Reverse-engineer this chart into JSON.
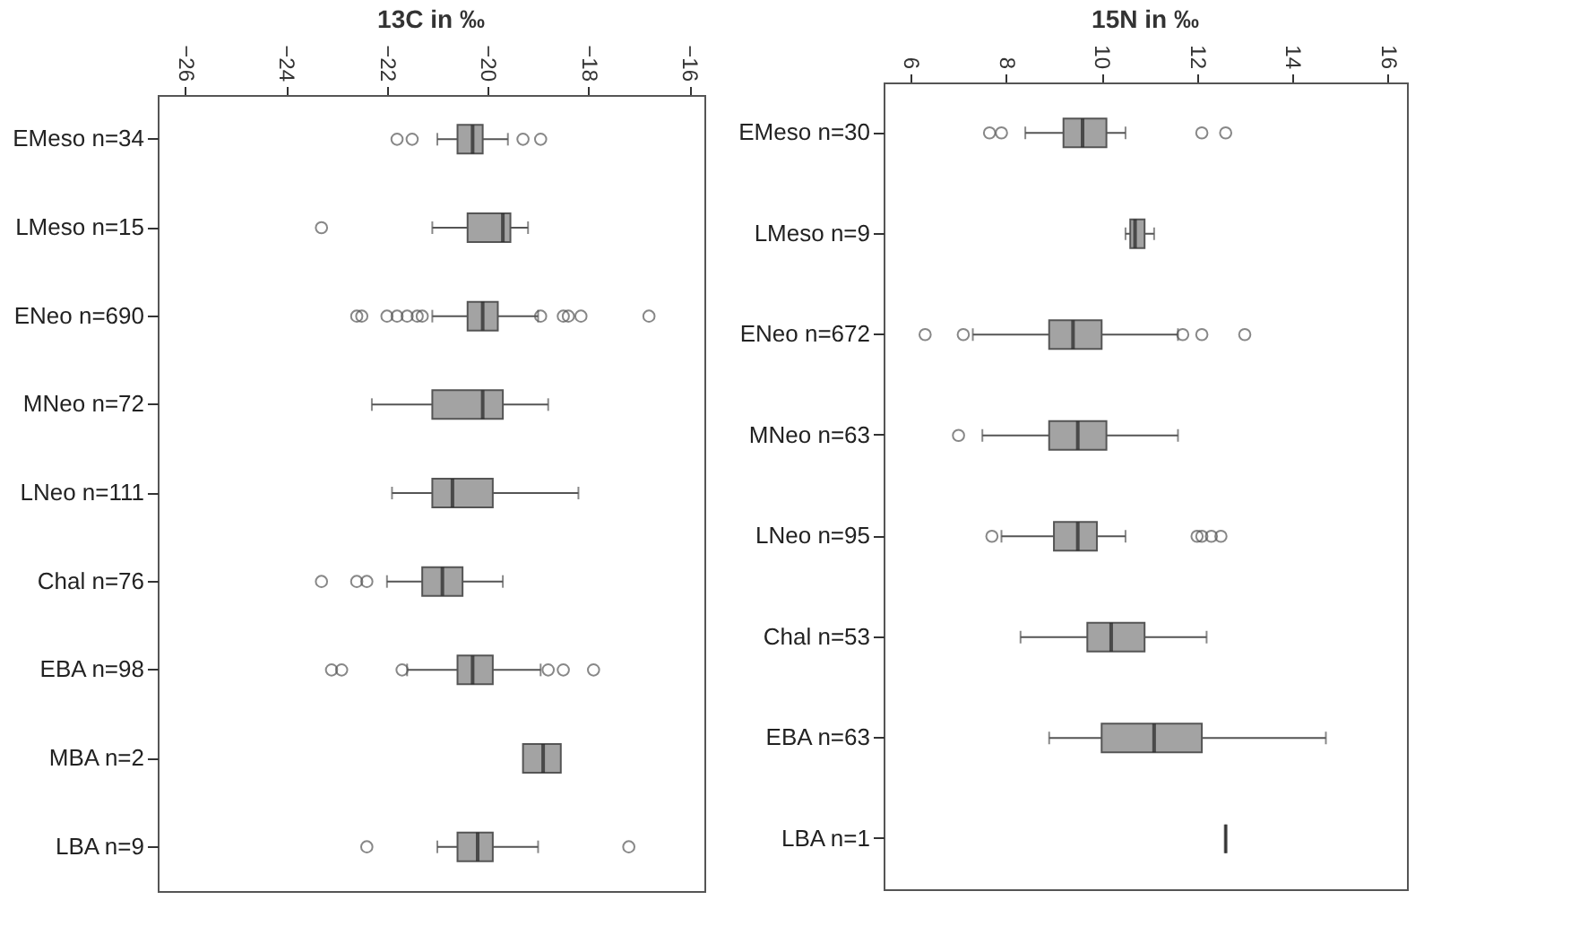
{
  "chart_data": [
    {
      "type": "box",
      "orientation": "horizontal",
      "title": "13C in ‰",
      "xlim": [
        -26.55,
        -15.7
      ],
      "xticks": [
        -26,
        -24,
        -22,
        -20,
        -18,
        -16
      ],
      "categories": [
        "EMeso n=34",
        "LMeso n=15",
        "ENeo n=690",
        "MNeo n=72",
        "LNeo n=111",
        "Chal n=76",
        "EBA n=98",
        "MBA n=2",
        "LBA n=9"
      ],
      "boxes": [
        {
          "low": -21.0,
          "q1": -20.6,
          "median": -20.3,
          "q3": -20.1,
          "high": -19.6,
          "outliers": [
            -21.8,
            -21.5,
            -19.3,
            -18.95
          ]
        },
        {
          "low": -21.1,
          "q1": -20.4,
          "median": -19.7,
          "q3": -19.55,
          "high": -19.2,
          "outliers": [
            -23.3
          ]
        },
        {
          "low": -21.1,
          "q1": -20.4,
          "median": -20.1,
          "q3": -19.8,
          "high": -19.0,
          "outliers": [
            -22.6,
            -22.5,
            -22.0,
            -21.8,
            -21.6,
            -21.4,
            -21.3,
            -18.95,
            -18.5,
            -18.4,
            -18.15,
            -16.8
          ]
        },
        {
          "low": -22.3,
          "q1": -21.1,
          "median": -20.1,
          "q3": -19.7,
          "high": -18.8
        },
        {
          "low": -21.9,
          "q1": -21.1,
          "median": -20.7,
          "q3": -19.9,
          "high": -18.2
        },
        {
          "low": -22.0,
          "q1": -21.3,
          "median": -20.9,
          "q3": -20.5,
          "high": -19.7,
          "outliers": [
            -23.3,
            -22.6,
            -22.4
          ]
        },
        {
          "low": -21.6,
          "q1": -20.6,
          "median": -20.3,
          "q3": -19.9,
          "high": -18.95,
          "outliers": [
            -23.1,
            -22.9,
            -21.7,
            -18.8,
            -18.5,
            -17.9
          ]
        },
        {
          "low": -19.3,
          "q1": -19.3,
          "median": -18.9,
          "q3": -18.55,
          "high": -18.55
        },
        {
          "low": -21.0,
          "q1": -20.6,
          "median": -20.2,
          "q3": -19.9,
          "high": -19.0,
          "outliers": [
            -22.4,
            -17.2
          ]
        }
      ]
    },
    {
      "type": "box",
      "orientation": "horizontal",
      "title": "15N in ‰",
      "xlim": [
        5.43,
        16.4
      ],
      "xticks": [
        6,
        8,
        10,
        12,
        14,
        16
      ],
      "categories": [
        "EMeso n=30",
        "LMeso n=9",
        "ENeo n=672",
        "MNeo n=63",
        "LNeo n=95",
        "Chal n=53",
        "EBA n=63",
        "LBA n=1"
      ],
      "boxes": [
        {
          "low": 8.4,
          "q1": 9.2,
          "median": 9.6,
          "q3": 10.1,
          "high": 10.5,
          "outliers": [
            7.65,
            7.9,
            12.1,
            12.6
          ]
        },
        {
          "low": 10.5,
          "q1": 10.6,
          "median": 10.7,
          "q3": 10.9,
          "high": 11.1
        },
        {
          "low": 7.3,
          "q1": 8.9,
          "median": 9.4,
          "q3": 10.0,
          "high": 11.6,
          "outliers": [
            6.3,
            7.1,
            11.7,
            12.1,
            13.0
          ]
        },
        {
          "low": 7.5,
          "q1": 8.9,
          "median": 9.5,
          "q3": 10.1,
          "high": 11.6,
          "outliers": [
            7.0
          ]
        },
        {
          "low": 7.9,
          "q1": 9.0,
          "median": 9.5,
          "q3": 9.9,
          "high": 10.5,
          "outliers": [
            7.7,
            12.0,
            12.1,
            12.3,
            12.5
          ]
        },
        {
          "low": 8.3,
          "q1": 9.7,
          "median": 10.2,
          "q3": 10.9,
          "high": 12.2
        },
        {
          "low": 8.9,
          "q1": 10.0,
          "median": 11.1,
          "q3": 12.1,
          "high": 14.7
        },
        {
          "low": 12.6,
          "q1": 12.6,
          "median": 12.6,
          "q3": 12.6,
          "high": 12.6
        }
      ]
    }
  ]
}
